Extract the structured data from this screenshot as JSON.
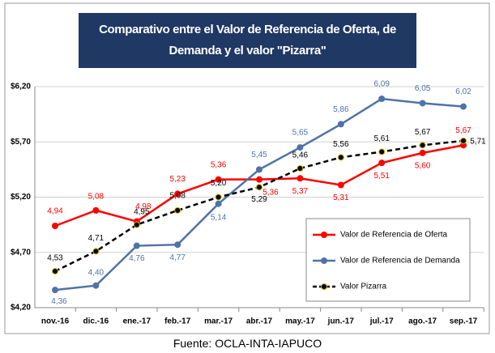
{
  "chart_data": {
    "type": "line",
    "title": "Comparativo entre el Valor de Referencia de Oferta, de Demanda y el valor \"Pizarra\"",
    "source": "Fuente: OCLA-INTA-IAPUCO",
    "categories": [
      "nov.-16",
      "dic.-16",
      "ene.-17",
      "feb.-17",
      "mar.-17",
      "abr.-17",
      "may.-17",
      "jun.-17",
      "jul.-17",
      "ago.-17",
      "sep.-17"
    ],
    "series": [
      {
        "name": "Valor de Referencia de Oferta",
        "color": "#ff0000",
        "style": "solid",
        "values": [
          4.94,
          5.08,
          4.98,
          5.23,
          5.36,
          5.36,
          5.37,
          5.31,
          5.51,
          5.6,
          5.67
        ],
        "value_labels": [
          "4,94",
          "5,08",
          "4,98",
          "5,23",
          "5,36",
          "5,36",
          "5,37",
          "5,31",
          "5,51",
          "5,60",
          "5,67"
        ]
      },
      {
        "name": "Valor de Referencia de Demanda",
        "color": "#4f72a8",
        "style": "solid",
        "values": [
          4.36,
          4.4,
          4.76,
          4.77,
          5.14,
          5.45,
          5.65,
          5.86,
          6.09,
          6.05,
          6.02
        ],
        "value_labels": [
          "4,36",
          "4,40",
          "4,76",
          "4,77",
          "5,14",
          "5,45",
          "5,65",
          "5,86",
          "6,09",
          "6,05",
          "6,02"
        ]
      },
      {
        "name": "Valor Pizarra",
        "color": "#000000",
        "style": "dashed",
        "values": [
          4.53,
          4.71,
          4.95,
          5.08,
          5.2,
          5.29,
          5.46,
          5.56,
          5.61,
          5.67,
          5.71
        ],
        "value_labels": [
          "4,53",
          "4,71",
          "4,95",
          "5,08",
          "5,20",
          "5,29",
          "5,46",
          "5,56",
          "5,61",
          "5,67",
          "5,71"
        ]
      }
    ],
    "ylim": [
      4.2,
      6.2
    ],
    "yticks": [
      {
        "value": 4.2,
        "label": "$4,20"
      },
      {
        "value": 4.7,
        "label": "$4,70"
      },
      {
        "value": 5.2,
        "label": "$5,20"
      },
      {
        "value": 5.7,
        "label": "$5,70"
      },
      {
        "value": 6.2,
        "label": "$6,20"
      }
    ],
    "grid": true,
    "legend": "lower right"
  }
}
